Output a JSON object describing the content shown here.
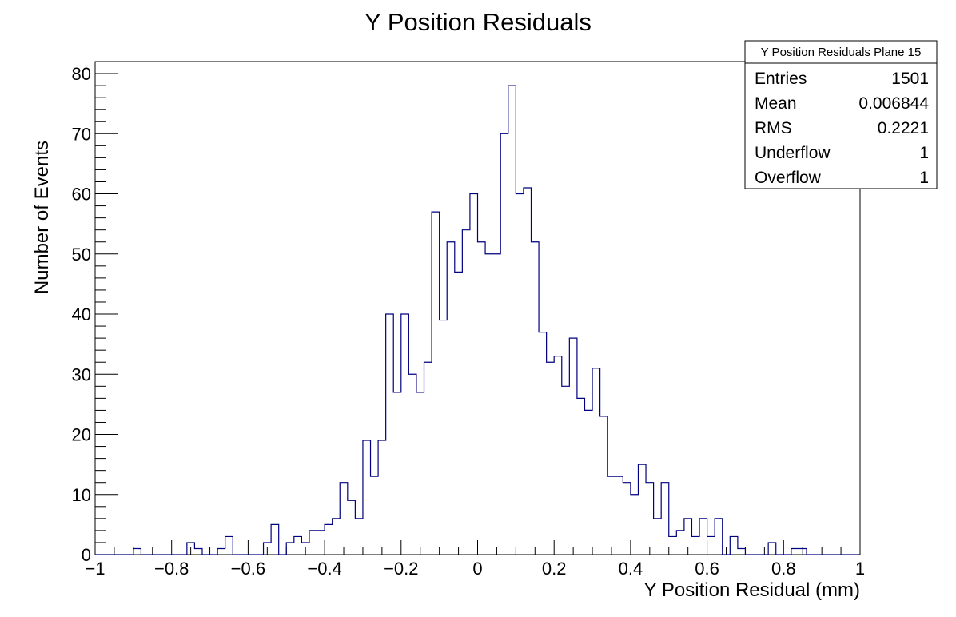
{
  "chart_data": {
    "type": "bar",
    "title": "Y Position Residuals",
    "xlabel": "Y Position Residual (mm)",
    "ylabel": "Number of Events",
    "xlim": [
      -1,
      1
    ],
    "ylim": [
      0,
      82
    ],
    "x_ticks": [
      -1,
      -0.8,
      -0.6,
      -0.4,
      -0.2,
      0,
      0.2,
      0.4,
      0.6,
      0.8,
      1
    ],
    "x_tick_labels": [
      "−1",
      "−0.8",
      "−0.6",
      "−0.4",
      "−0.2",
      "0",
      "0.2",
      "0.4",
      "0.6",
      "0.8",
      "1"
    ],
    "y_ticks": [
      0,
      10,
      20,
      30,
      40,
      50,
      60,
      70,
      80
    ],
    "y_tick_labels": [
      "0",
      "10",
      "20",
      "30",
      "40",
      "50",
      "60",
      "70",
      "80"
    ],
    "grid": false,
    "bin_width": 0.02,
    "bin_start": -1,
    "line_color": "#000080",
    "values": [
      0,
      0,
      0,
      0,
      0,
      1,
      0,
      0,
      0,
      0,
      0,
      0,
      2,
      1,
      0,
      0,
      1,
      3,
      0,
      0,
      0,
      0,
      2,
      5,
      0,
      2,
      3,
      2,
      4,
      4,
      5,
      6,
      12,
      9,
      6,
      19,
      13,
      19,
      40,
      27,
      40,
      30,
      27,
      32,
      57,
      39,
      52,
      47,
      54,
      60,
      52,
      50,
      50,
      70,
      78,
      60,
      61,
      52,
      37,
      32,
      33,
      28,
      36,
      26,
      24,
      31,
      23,
      13,
      13,
      12,
      10,
      15,
      12,
      6,
      12,
      3,
      4,
      6,
      3,
      6,
      3,
      6,
      0,
      3,
      1,
      0,
      0,
      0,
      2,
      0,
      0,
      1,
      1,
      0,
      0,
      0,
      0,
      0,
      0,
      0
    ],
    "legend": {
      "placement": "top-right",
      "title": "Y Position Residuals Plane 15",
      "rows": [
        {
          "label": "Entries",
          "value": "1501"
        },
        {
          "label": "Mean",
          "value": "0.006844"
        },
        {
          "label": "RMS",
          "value": "0.2221"
        },
        {
          "label": "Underflow",
          "value": "1"
        },
        {
          "label": "Overflow",
          "value": "1"
        }
      ]
    }
  }
}
